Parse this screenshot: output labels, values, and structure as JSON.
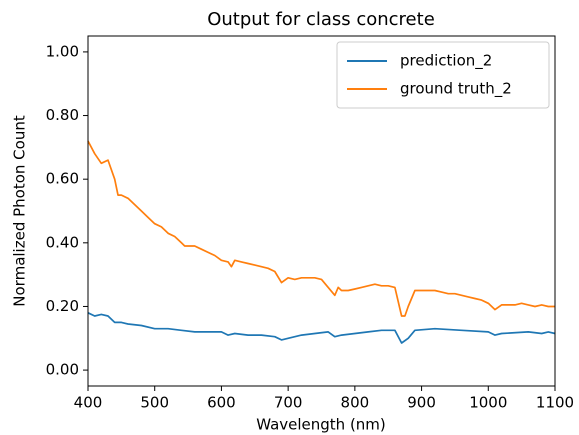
{
  "chart_data": {
    "type": "line",
    "title": "Output for class concrete",
    "x_label": "Wavelength (nm)",
    "y_label": "Normalized Photon Count",
    "xlim": [
      400,
      1100
    ],
    "xticks": [
      400,
      500,
      600,
      700,
      800,
      900,
      1000,
      1100
    ],
    "ylim": [
      -0.05,
      1.05
    ],
    "yticks": [
      {
        "value": 0,
        "label": "0.00"
      },
      {
        "value": 0.2,
        "label": "0.20"
      },
      {
        "value": 0.4,
        "label": "0.40"
      },
      {
        "value": 0.6,
        "label": "0.60"
      },
      {
        "value": 0.8,
        "label": "0.80"
      },
      {
        "value": 1.0,
        "label": "1.00"
      }
    ],
    "grid": false,
    "legend": "upper right",
    "series": [
      {
        "name": "prediction_2",
        "color": "#1f77b4",
        "x": [
          400,
          410,
          420,
          430,
          440,
          450,
          460,
          480,
          500,
          520,
          540,
          560,
          580,
          600,
          610,
          620,
          640,
          660,
          680,
          690,
          700,
          720,
          740,
          760,
          770,
          780,
          800,
          820,
          840,
          860,
          870,
          880,
          890,
          920,
          960,
          1000,
          1010,
          1020,
          1060,
          1080,
          1090,
          1100
        ],
        "values": [
          0.18,
          0.17,
          0.175,
          0.17,
          0.15,
          0.15,
          0.145,
          0.14,
          0.13,
          0.13,
          0.125,
          0.12,
          0.12,
          0.12,
          0.11,
          0.115,
          0.11,
          0.11,
          0.105,
          0.095,
          0.1,
          0.11,
          0.115,
          0.12,
          0.105,
          0.11,
          0.115,
          0.12,
          0.125,
          0.125,
          0.085,
          0.1,
          0.125,
          0.13,
          0.125,
          0.12,
          0.11,
          0.115,
          0.12,
          0.115,
          0.12,
          0.115
        ]
      },
      {
        "name": "ground truth_2",
        "color": "#ff7f0e",
        "x": [
          400,
          410,
          420,
          430,
          440,
          445,
          450,
          460,
          470,
          480,
          490,
          500,
          510,
          520,
          530,
          540,
          545,
          560,
          570,
          580,
          590,
          600,
          610,
          615,
          620,
          630,
          640,
          650,
          660,
          670,
          680,
          690,
          700,
          710,
          720,
          730,
          740,
          750,
          760,
          770,
          775,
          780,
          790,
          800,
          810,
          820,
          830,
          840,
          850,
          860,
          870,
          875,
          880,
          890,
          900,
          910,
          920,
          930,
          940,
          950,
          960,
          970,
          980,
          990,
          1000,
          1010,
          1020,
          1030,
          1040,
          1050,
          1060,
          1070,
          1080,
          1090,
          1100
        ],
        "values": [
          0.72,
          0.68,
          0.65,
          0.66,
          0.6,
          0.55,
          0.55,
          0.54,
          0.52,
          0.5,
          0.48,
          0.46,
          0.45,
          0.43,
          0.42,
          0.4,
          0.39,
          0.39,
          0.38,
          0.37,
          0.36,
          0.345,
          0.34,
          0.325,
          0.345,
          0.34,
          0.335,
          0.33,
          0.325,
          0.32,
          0.31,
          0.275,
          0.29,
          0.285,
          0.29,
          0.29,
          0.29,
          0.285,
          0.26,
          0.235,
          0.26,
          0.25,
          0.25,
          0.255,
          0.26,
          0.265,
          0.27,
          0.265,
          0.265,
          0.26,
          0.17,
          0.17,
          0.2,
          0.25,
          0.25,
          0.25,
          0.25,
          0.245,
          0.24,
          0.24,
          0.235,
          0.23,
          0.225,
          0.22,
          0.21,
          0.19,
          0.205,
          0.205,
          0.205,
          0.21,
          0.205,
          0.2,
          0.205,
          0.2,
          0.2
        ]
      }
    ]
  }
}
